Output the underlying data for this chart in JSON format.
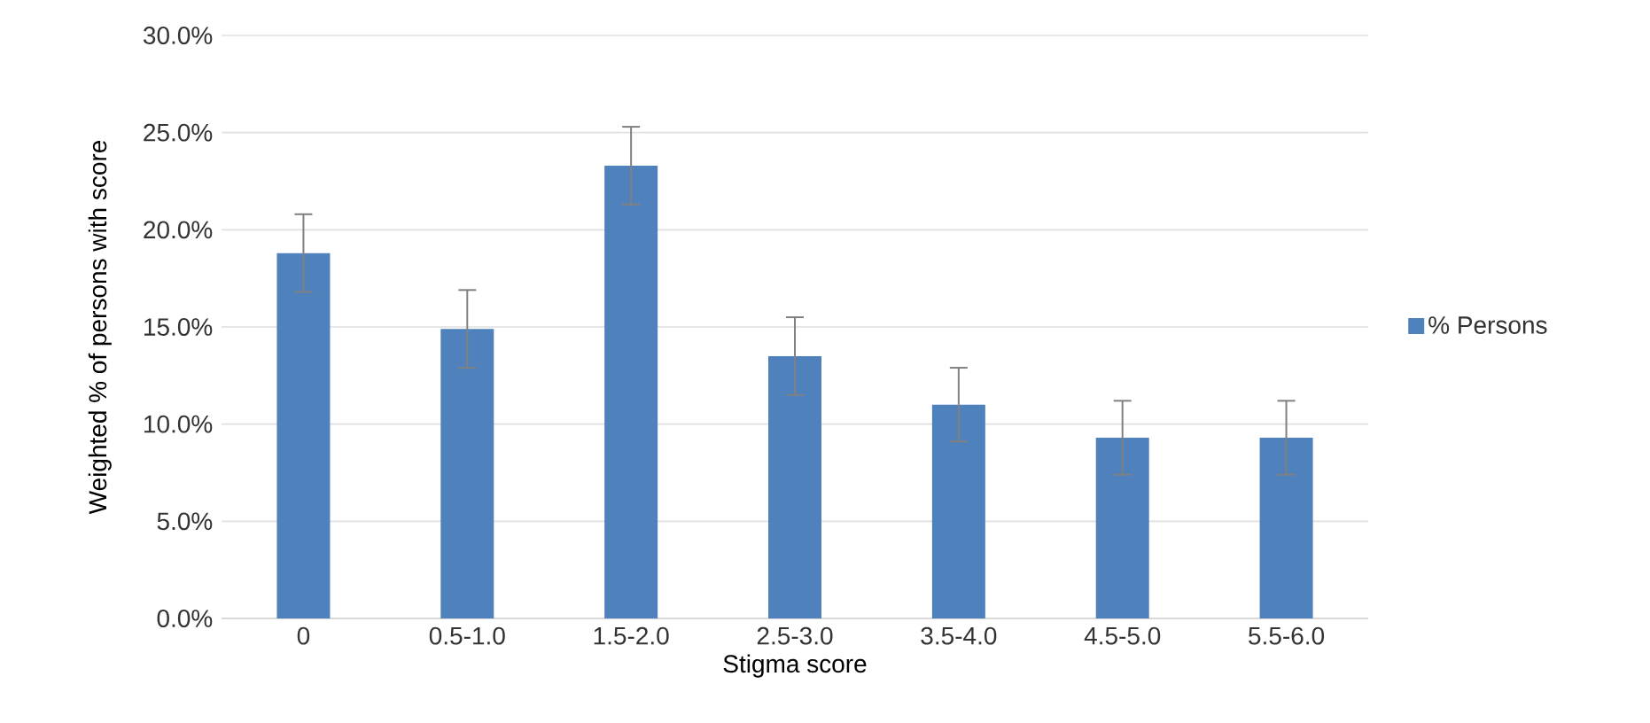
{
  "chart_data": {
    "type": "bar",
    "xlabel": "Stigma score",
    "ylabel": "Weighted % of persons with score",
    "categories": [
      "0",
      "0.5-1.0",
      "1.5-2.0",
      "2.5-3.0",
      "3.5-4.0",
      "4.5-5.0",
      "5.5-6.0"
    ],
    "series": [
      {
        "name": "% Persons",
        "color": "#4f81bd",
        "values": [
          18.8,
          14.9,
          23.3,
          13.5,
          11.0,
          9.3,
          9.3
        ],
        "errors": [
          2.0,
          2.0,
          2.0,
          2.0,
          1.9,
          1.9,
          1.9
        ]
      }
    ],
    "ylim": [
      0,
      30
    ],
    "yticks": [
      {
        "value": 0,
        "label": "0.0%"
      },
      {
        "value": 5,
        "label": "5.0%"
      },
      {
        "value": 10,
        "label": "10.0%"
      },
      {
        "value": 15,
        "label": "15.0%"
      },
      {
        "value": 20,
        "label": "20.0%"
      },
      {
        "value": 25,
        "label": "25.0%"
      },
      {
        "value": 30,
        "label": "30.0%"
      }
    ],
    "grid": "y",
    "legend": "right"
  }
}
